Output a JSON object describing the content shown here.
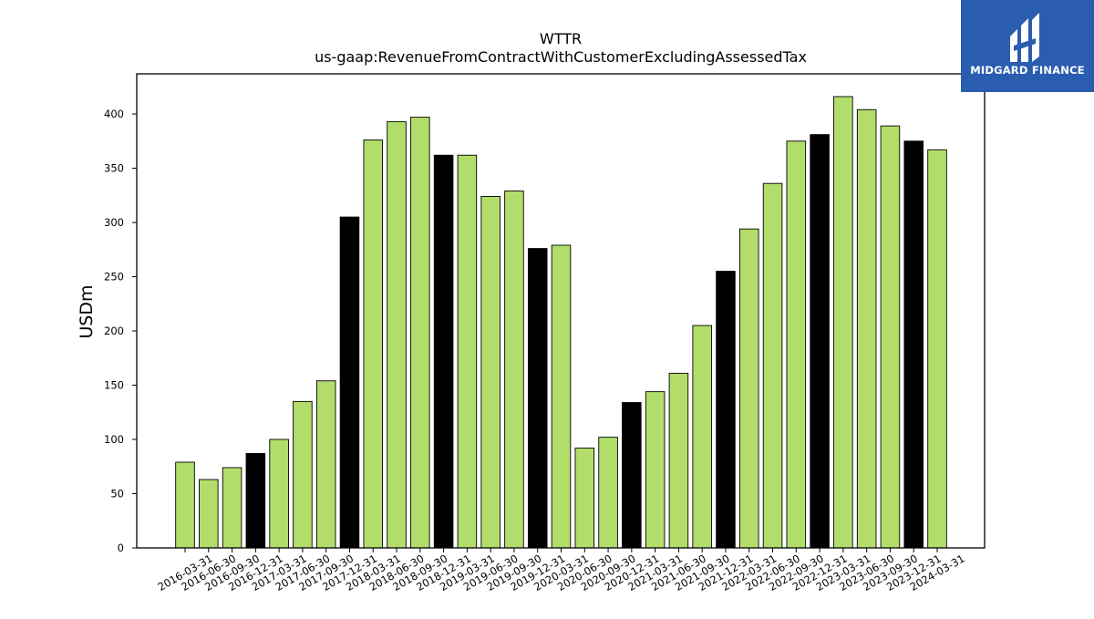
{
  "brand": {
    "name": "MIDGARD FINANCE",
    "background": "#2a5db0"
  },
  "chart_data": {
    "type": "bar",
    "title": "WTTR",
    "subtitle": "us-gaap:RevenueFromContractWithCustomerExcludingAssessedTax",
    "xlabel": "",
    "ylabel": "USDm",
    "ylim": [
      0,
      437
    ],
    "yticks": [
      0,
      50,
      100,
      150,
      200,
      250,
      300,
      350,
      400
    ],
    "grid": false,
    "colors": {
      "quarter": "#b2dd6b",
      "year_end": "#000000",
      "edge": "#000000"
    },
    "categories": [
      "2016-03-31",
      "2016-06-30",
      "2016-09-30",
      "2016-12-31",
      "2017-03-31",
      "2017-06-30",
      "2017-09-30",
      "2017-12-31",
      "2018-03-31",
      "2018-06-30",
      "2018-09-30",
      "2018-12-31",
      "2019-03-31",
      "2019-06-30",
      "2019-09-30",
      "2019-12-31",
      "2020-03-31",
      "2020-06-30",
      "2020-09-30",
      "2020-12-31",
      "2021-03-31",
      "2021-06-30",
      "2021-09-30",
      "2021-12-31",
      "2022-03-31",
      "2022-06-30",
      "2022-09-30",
      "2022-12-31",
      "2023-03-31",
      "2023-06-30",
      "2023-09-30",
      "2023-12-31",
      "2024-03-31"
    ],
    "values": [
      79,
      63,
      74,
      87,
      100,
      135,
      154,
      305,
      376,
      393,
      397,
      362,
      362,
      324,
      329,
      276,
      279,
      92,
      102,
      134,
      144,
      161,
      205,
      255,
      294,
      336,
      375,
      381,
      416,
      404,
      389,
      375,
      367
    ]
  }
}
